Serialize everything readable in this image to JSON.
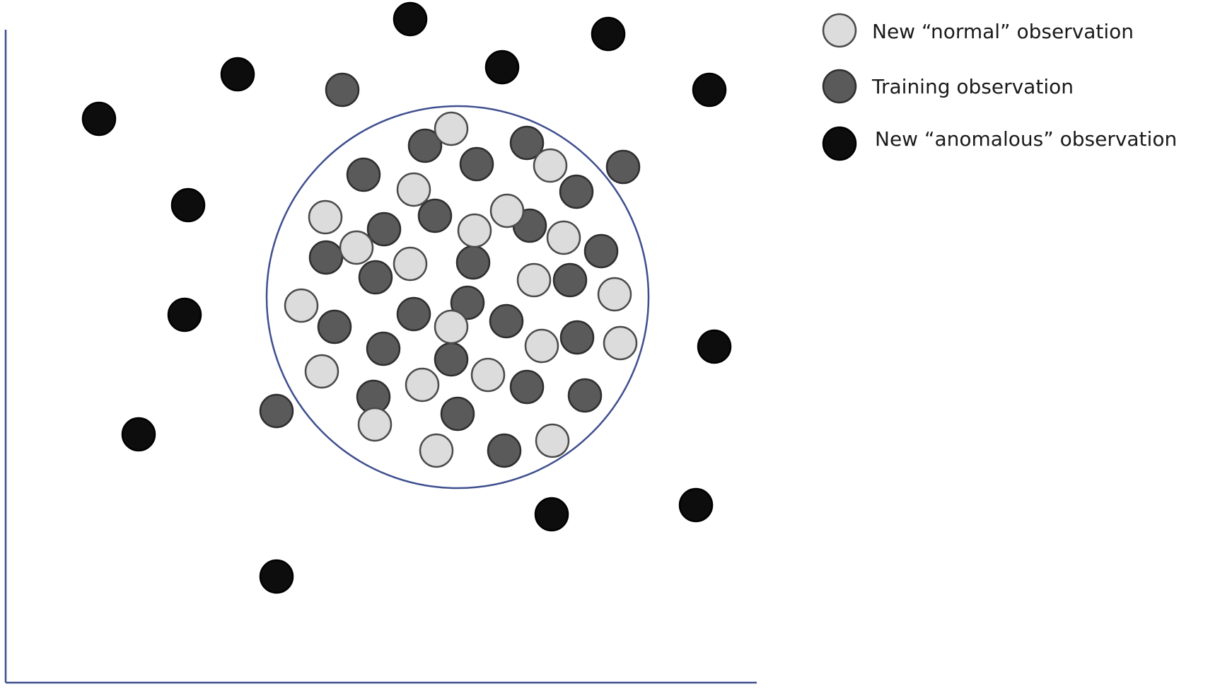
{
  "colors": {
    "normal_fill": "#dcdcdc",
    "training_fill": "#5a5a5a",
    "anomalous_fill": "#0d0d0d",
    "boundary_stroke": "#3f4f8f",
    "axis_stroke": "#3f4f8f"
  },
  "legend": {
    "normal_label": "New “normal” observation",
    "training_label": "Training observation",
    "anomalous_label": "New “anomalous” observation"
  }
}
